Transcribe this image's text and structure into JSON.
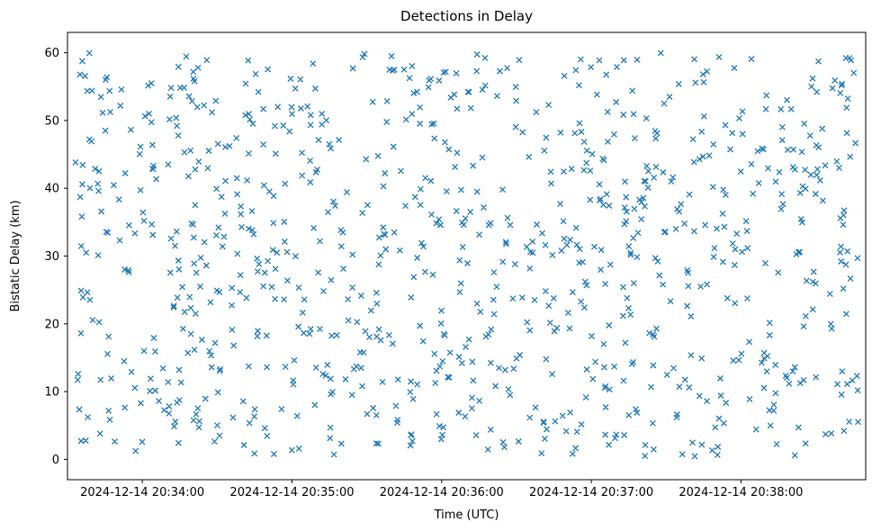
{
  "chart_data": {
    "type": "scatter",
    "title": "Detections in Delay",
    "xlabel": "Time (UTC)",
    "ylabel": "Bistatic Delay (km)",
    "marker": "x",
    "marker_color": "#1f77b4",
    "background_color": "#ffffff",
    "grid": false,
    "legend": false,
    "x_ticks": [
      {
        "label": "2024-12-14 20:34:00",
        "t": 30
      },
      {
        "label": "2024-12-14 20:35:00",
        "t": 90
      },
      {
        "label": "2024-12-14 20:36:00",
        "t": 150
      },
      {
        "label": "2024-12-14 20:37:00",
        "t": 210
      },
      {
        "label": "2024-12-14 20:38:00",
        "t": 270
      }
    ],
    "x_axis_span": {
      "start_label": "2024-12-14 20:33:30",
      "end_label": "2024-12-14 20:38:50",
      "span_seconds": 320
    },
    "y_ticks": [
      0,
      10,
      20,
      30,
      40,
      50,
      60
    ],
    "ylim": [
      -3,
      63
    ],
    "points": {
      "distribution": "uniform-random-scatter",
      "count": 950,
      "t_min": 3,
      "t_max": 317,
      "y_min": 0.4,
      "y_max": 60.0,
      "seed": 20241214
    }
  }
}
